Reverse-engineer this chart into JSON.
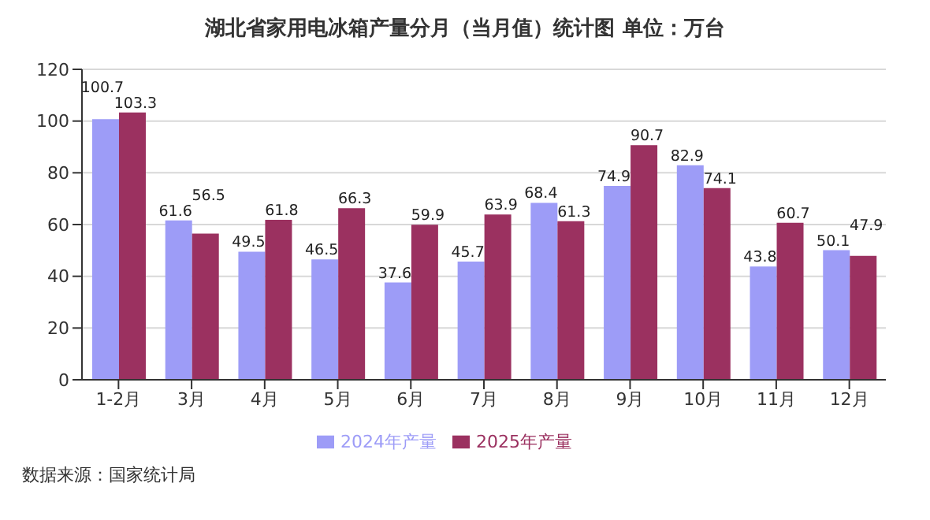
{
  "chart_data": {
    "type": "bar",
    "title": "湖北省家用电冰箱产量分月（当月值）统计图 单位：万台",
    "categories": [
      "1-2月",
      "3月",
      "4月",
      "5月",
      "6月",
      "7月",
      "8月",
      "9月",
      "10月",
      "11月",
      "12月"
    ],
    "series": [
      {
        "name": "2024年产量",
        "color": "#9d9cf7",
        "values": [
          100.7,
          61.6,
          49.5,
          46.5,
          37.6,
          45.7,
          68.4,
          74.9,
          82.9,
          43.8,
          50.1
        ]
      },
      {
        "name": "2025年产量",
        "color": "#9b3160",
        "values": [
          103.3,
          56.5,
          61.8,
          66.3,
          59.9,
          63.9,
          61.3,
          90.7,
          74.1,
          60.7,
          47.9
        ]
      }
    ],
    "ylim": [
      0,
      120
    ],
    "yticks": [
      0,
      20,
      40,
      60,
      80,
      100,
      120
    ],
    "grid": "y",
    "legend": "bottom",
    "data_labels": true,
    "annotations": [
      "数据来源：国家统计局"
    ]
  }
}
